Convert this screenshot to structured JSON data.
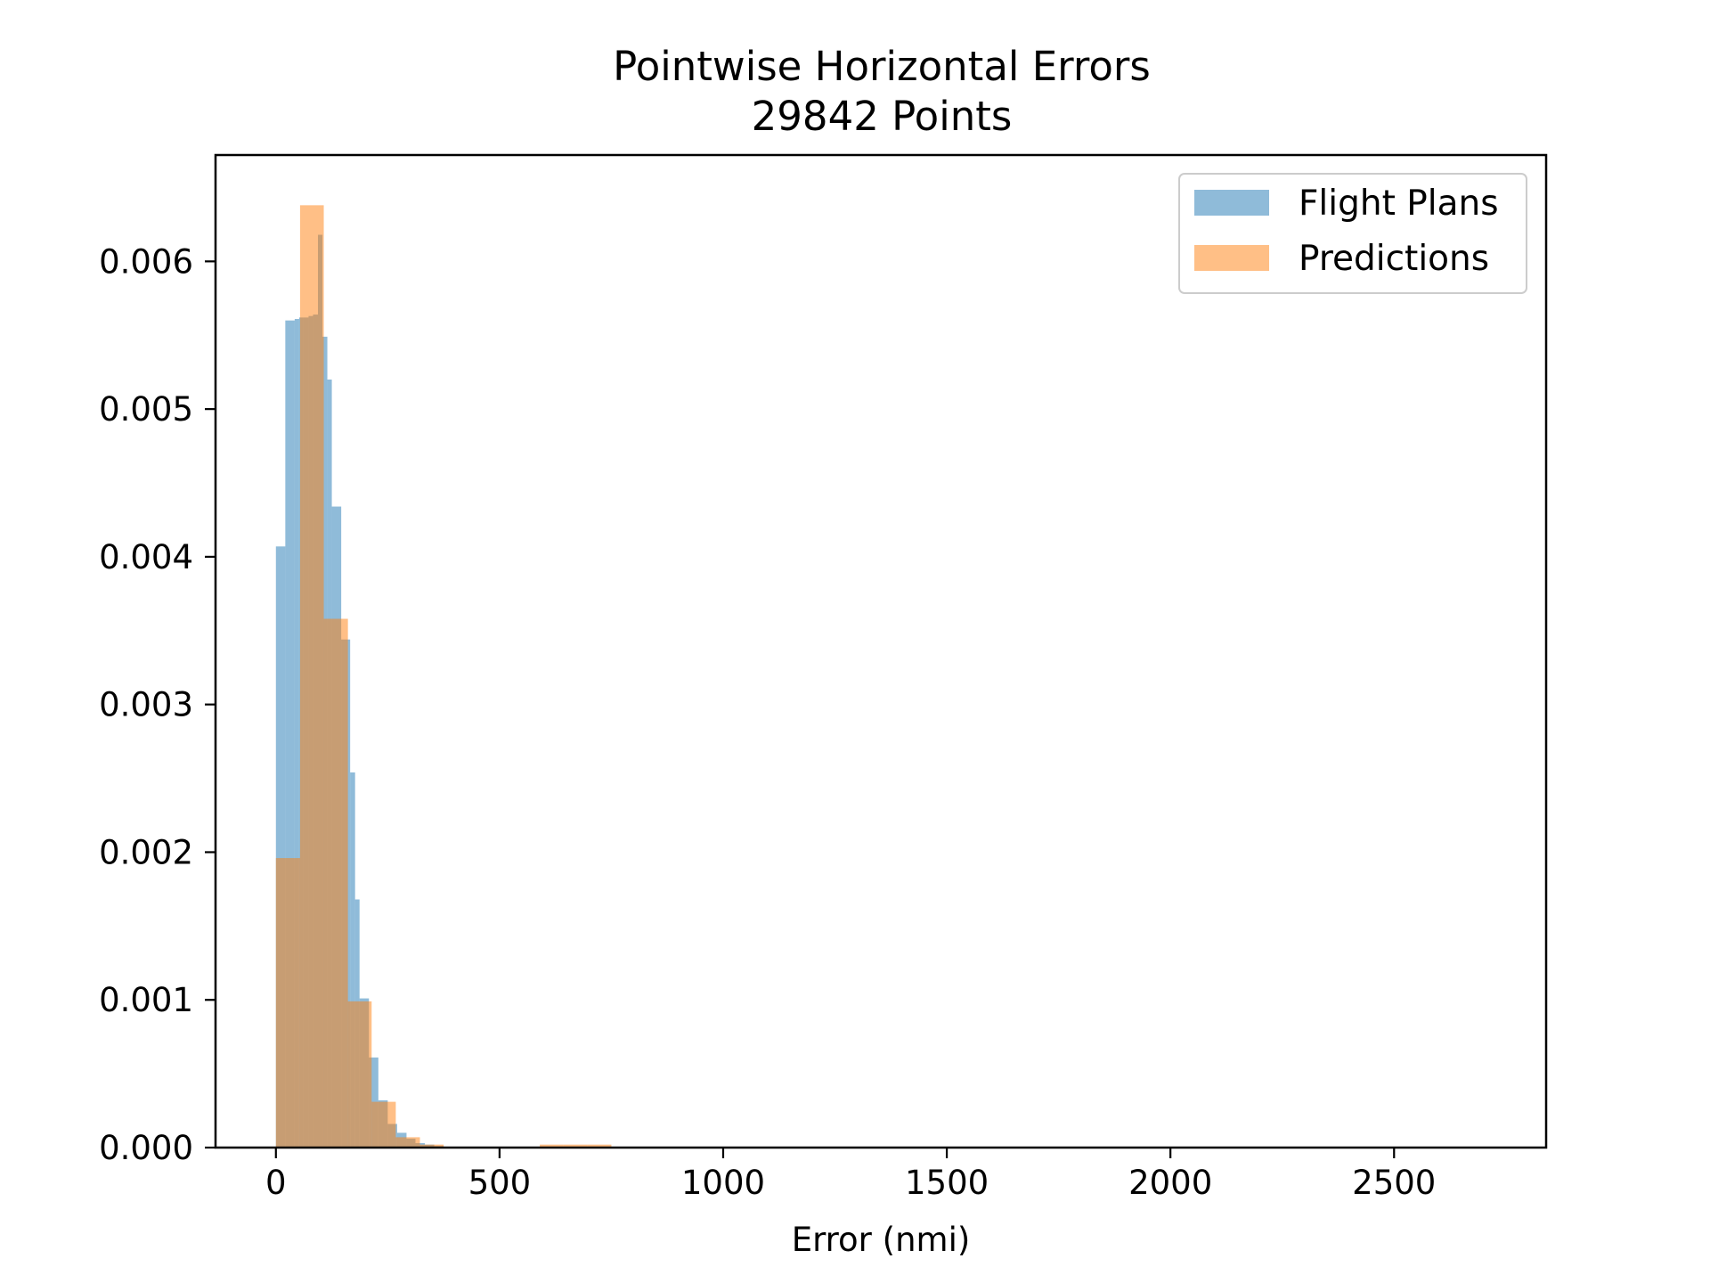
{
  "chart_data": {
    "type": "histogram",
    "title": "Pointwise Horizontal Errors",
    "subtitle": "29842 Points",
    "xlabel": "Error (nmi)",
    "ylabel": "",
    "xlim": [
      -135,
      2840
    ],
    "ylim": [
      0,
      0.00672
    ],
    "grid": false,
    "legend_position": "top-right",
    "x_ticks": [
      0,
      500,
      1000,
      1500,
      2000,
      2500
    ],
    "x_tick_labels": [
      "0",
      "500",
      "1000",
      "1500",
      "2000",
      "2500"
    ],
    "y_ticks": [
      0,
      0.001,
      0.002,
      0.003,
      0.004,
      0.005,
      0.006
    ],
    "y_tick_labels": [
      "0.000",
      "0.001",
      "0.002",
      "0.003",
      "0.004",
      "0.005",
      "0.006"
    ],
    "series": [
      {
        "name": "Flight Plans",
        "color": "#1f77b4",
        "opacity": 0.5,
        "bin_edges": [
          0,
          21,
          42,
          52,
          62,
          73,
          83,
          94,
          104,
          115,
          125,
          146,
          166,
          177,
          187,
          208,
          229,
          250,
          271,
          292,
          312,
          333,
          354,
          375
        ],
        "values": [
          0.00407,
          0.0056,
          0.00561,
          0.00562,
          0.00562,
          0.00563,
          0.00564,
          0.00618,
          0.00549,
          0.0052,
          0.00434,
          0.00344,
          0.00254,
          0.00168,
          0.00101,
          0.00061,
          0.00032,
          0.00016,
          0.0001,
          6e-05,
          3e-05,
          2e-05,
          1e-05
        ]
      },
      {
        "name": "Predictions",
        "color": "#ff7f0e",
        "opacity": 0.5,
        "bin_edges": [
          0,
          54,
          107,
          161,
          214,
          268,
          322,
          375,
          429,
          482,
          536,
          590,
          643,
          697,
          750
        ],
        "values": [
          0.00196,
          0.00638,
          0.00358,
          0.00099,
          0.00031,
          7e-05,
          2e-05,
          5e-06,
          5e-06,
          5e-06,
          5e-06,
          2e-05,
          2e-05,
          2e-05
        ]
      }
    ]
  }
}
